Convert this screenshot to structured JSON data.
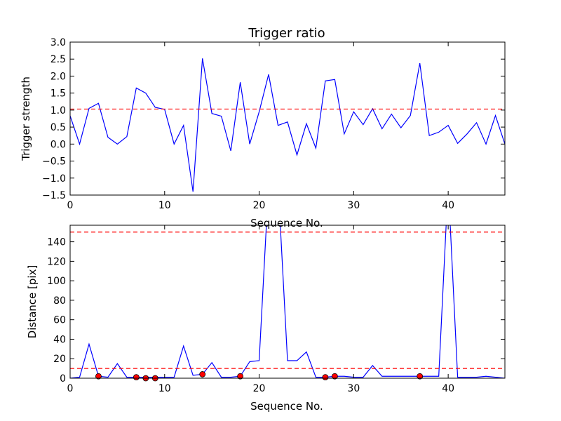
{
  "chart_data": [
    {
      "type": "line",
      "title": "Trigger ratio",
      "xlabel": "Sequence No.",
      "ylabel": "Trigger strength",
      "xlim": [
        0,
        46
      ],
      "ylim": [
        -1.5,
        3.0
      ],
      "xticks": [
        "0",
        "10",
        "20",
        "30",
        "40"
      ],
      "yticks": [
        "−1.5",
        "−1.0",
        "−0.5",
        "0.0",
        "0.5",
        "1.0",
        "1.5",
        "2.0",
        "2.5",
        "3.0"
      ],
      "threshold": 1.03,
      "grid": false,
      "colors": {
        "line": "#0000ff",
        "threshold": "#ff0000"
      },
      "x": [
        0,
        1,
        2,
        3,
        4,
        5,
        6,
        7,
        8,
        9,
        10,
        11,
        12,
        13,
        14,
        15,
        16,
        17,
        18,
        19,
        20,
        21,
        22,
        23,
        24,
        25,
        26,
        27,
        28,
        29,
        30,
        31,
        32,
        33,
        34,
        35,
        36,
        37,
        38,
        39,
        40,
        41,
        42,
        43,
        44,
        45,
        46
      ],
      "values": [
        0.83,
        0.0,
        1.05,
        1.2,
        0.2,
        0.0,
        0.22,
        1.65,
        1.5,
        1.08,
        1.02,
        0.0,
        0.55,
        -1.4,
        2.52,
        0.9,
        0.82,
        -0.2,
        1.82,
        0.0,
        0.95,
        2.05,
        0.55,
        0.65,
        -0.32,
        0.6,
        -0.12,
        1.86,
        1.9,
        0.3,
        0.95,
        0.57,
        1.04,
        0.45,
        0.88,
        0.48,
        0.84,
        2.38,
        0.25,
        0.35,
        0.55,
        0.02,
        0.3,
        0.63,
        0.0,
        0.84,
        0.0
      ]
    },
    {
      "type": "line",
      "title": "",
      "xlabel": "Sequence No.",
      "ylabel": "Distance [pix]",
      "xlim": [
        0,
        46
      ],
      "ylim": [
        0,
        157
      ],
      "xticks": [
        "0",
        "10",
        "20",
        "30",
        "40"
      ],
      "yticks": [
        "0",
        "20",
        "40",
        "60",
        "80",
        "100",
        "120",
        "140"
      ],
      "thresholds": [
        10,
        150
      ],
      "grid": false,
      "colors": {
        "line": "#0000ff",
        "threshold": "#ff0000",
        "marker": "#ff0000"
      },
      "x": [
        0,
        1,
        2,
        3,
        4,
        5,
        6,
        7,
        8,
        9,
        10,
        11,
        12,
        13,
        14,
        15,
        16,
        17,
        18,
        19,
        20,
        21,
        22,
        23,
        24,
        25,
        26,
        27,
        28,
        29,
        30,
        31,
        32,
        33,
        34,
        35,
        36,
        37,
        38,
        39,
        40,
        41,
        42,
        43,
        44,
        45,
        46
      ],
      "values": [
        0,
        1,
        35,
        2,
        1,
        15,
        1,
        1,
        1,
        1,
        1,
        1,
        33,
        3,
        4,
        16,
        1,
        1,
        2,
        17,
        18,
        200,
        200,
        18,
        18,
        27,
        1,
        1,
        2,
        2,
        1,
        1,
        13,
        2,
        2,
        2,
        2,
        2,
        2,
        2,
        200,
        1,
        1,
        1,
        2,
        1,
        0
      ],
      "markers_x": [
        3,
        7,
        8,
        9,
        14,
        18,
        27,
        28,
        37
      ],
      "markers_y": [
        2,
        1,
        0,
        0,
        4,
        2,
        1,
        2,
        2
      ]
    }
  ]
}
